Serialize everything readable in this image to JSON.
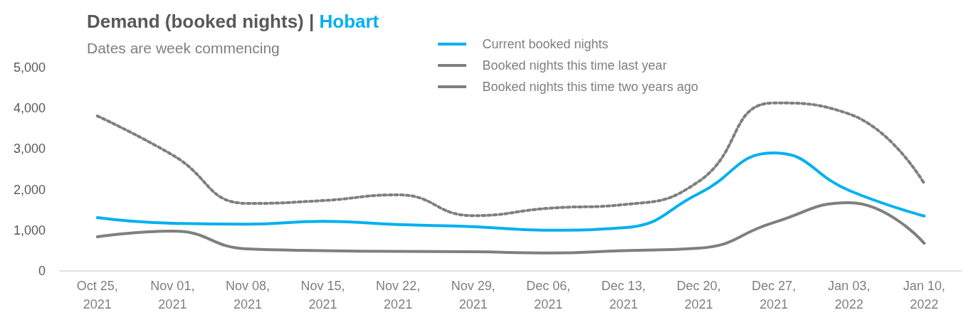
{
  "chart_data": {
    "type": "line",
    "title": "Demand (booked nights) | Hobart",
    "subtitle": "Dates are week commencing",
    "categories": [
      "Oct 25, 2021",
      "Nov 01, 2021",
      "Nov 08, 2021",
      "Nov 15, 2021",
      "Nov 22, 2021",
      "Nov 29, 2021",
      "Dec 06, 2021",
      "Dec 13, 2021",
      "Dec 20, 2021",
      "Dec 27, 2021",
      "Jan 03, 2022",
      "Jan 10, 2022"
    ],
    "series": [
      {
        "name": "Current booked nights",
        "color": "#00b0f0",
        "line_style": "solid",
        "values": [
          1310,
          1170,
          1150,
          1220,
          1140,
          1090,
          1000,
          1060,
          1900,
          2900,
          1980,
          1350
        ]
      },
      {
        "name": "Booked nights this time last year",
        "color": "#7f7f7f",
        "line_style": "solid",
        "values": [
          840,
          980,
          540,
          500,
          480,
          470,
          440,
          500,
          560,
          1190,
          1680,
          680
        ]
      },
      {
        "name": "Booked nights this time two years ago",
        "color": "#7f7f7f",
        "line_style": "dotted",
        "values": [
          3810,
          2850,
          1660,
          1730,
          1870,
          1360,
          1540,
          1630,
          2200,
          4130,
          3860,
          2150
        ]
      }
    ],
    "ylim": [
      0,
      5000
    ],
    "yticks": [
      {
        "value": 0,
        "label": "0"
      },
      {
        "value": 1000,
        "label": "1,000"
      },
      {
        "value": 2000,
        "label": "2,000"
      },
      {
        "value": 3000,
        "label": "3,000"
      },
      {
        "value": 4000,
        "label": "4,000"
      },
      {
        "value": 5000,
        "label": "5,000"
      }
    ],
    "legend": "top",
    "marker": "none"
  }
}
